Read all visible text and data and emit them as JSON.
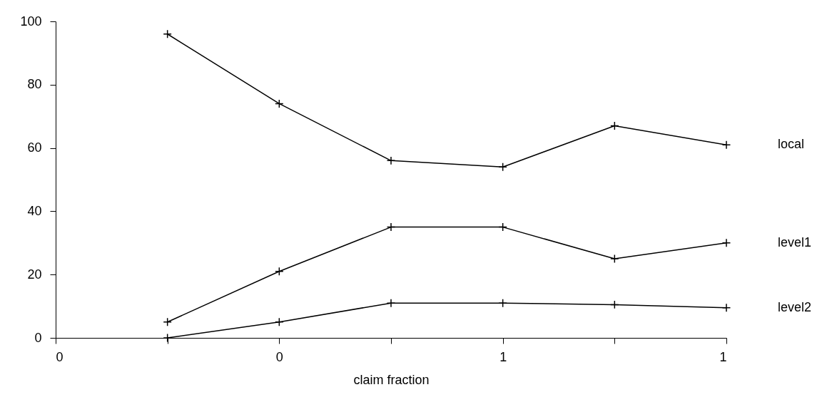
{
  "chart_data": {
    "type": "line",
    "xlabel": "claim fraction",
    "x": [
      0.2,
      0.4,
      0.6,
      0.8,
      1.0,
      1.2
    ],
    "series": [
      {
        "name": "local",
        "color": "#000000",
        "values": [
          96,
          74,
          56,
          54,
          67,
          61
        ]
      },
      {
        "name": "level1",
        "color": "#000000",
        "values": [
          5,
          21,
          35,
          35,
          25,
          30
        ]
      },
      {
        "name": "level2",
        "color": "#000000",
        "values": [
          0,
          5,
          11,
          11,
          10.5,
          9.5
        ]
      }
    ],
    "xlim": [
      0,
      1.2
    ],
    "xticks": [
      0,
      {
        "value": 0.2,
        "label": null
      },
      {
        "value": 0.4,
        "label": "0"
      },
      {
        "value": 0.6,
        "label": null
      },
      {
        "value": 0.8,
        "label": "1"
      },
      {
        "value": 1.0,
        "label": null
      },
      {
        "value": 1.2,
        "label": "1"
      }
    ],
    "ylim": [
      0,
      100
    ],
    "yticks": [
      0,
      20,
      40,
      60,
      80,
      100
    ],
    "grid": false,
    "legend": false,
    "marker": "cross",
    "line_style": "solid"
  }
}
